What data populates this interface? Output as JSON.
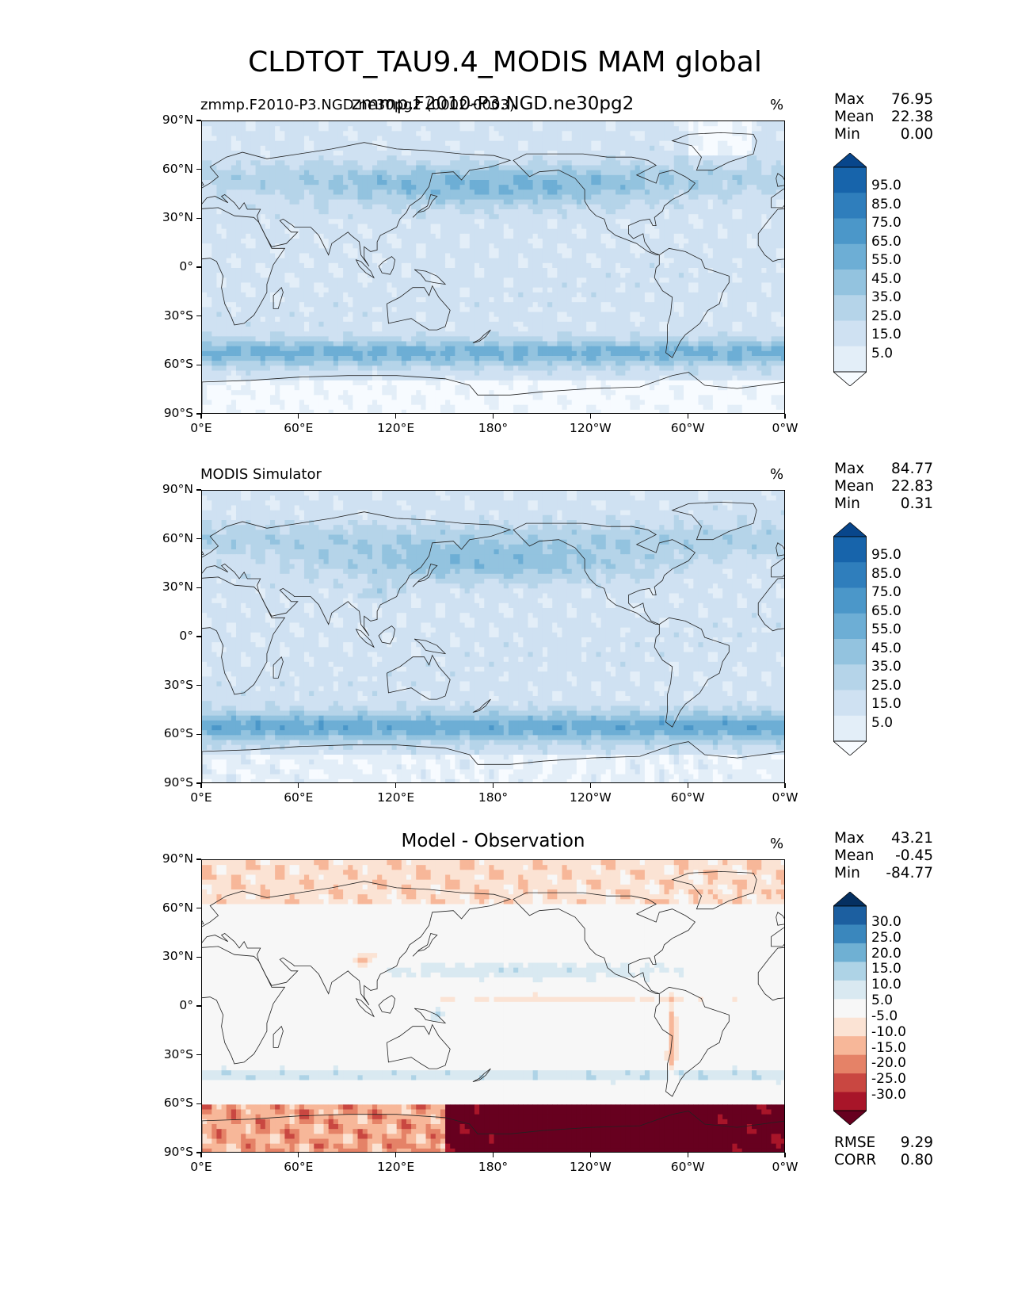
{
  "title": "CLDTOT_TAU9.4_MODIS MAM global",
  "units": "%",
  "lat_ticks": [
    "90°N",
    "60°N",
    "30°N",
    "0°",
    "30°S",
    "60°S",
    "90°S"
  ],
  "lon_ticks": [
    "0°E",
    "60°E",
    "120°E",
    "180°",
    "120°W",
    "60°W",
    "0°W"
  ],
  "panels": [
    {
      "subtitle_left": "zmmp.F2010-P3.NGD.ne30pg2 (0002-0003)",
      "subtitle_center": "zmmp.F2010-P3.NGD.ne30pg2",
      "units": "%",
      "stats": {
        "max_label": "Max",
        "max": "76.95",
        "mean_label": "Mean",
        "mean": "22.38",
        "min_label": "Min",
        "min": "0.00"
      },
      "colorbar": {
        "levels": [
          "95.0",
          "85.0",
          "75.0",
          "65.0",
          "55.0",
          "45.0",
          "35.0",
          "25.0",
          "15.0",
          "5.0"
        ]
      }
    },
    {
      "subtitle_left": "MODIS Simulator",
      "subtitle_center": "",
      "units": "%",
      "stats": {
        "max_label": "Max",
        "max": "84.77",
        "mean_label": "Mean",
        "mean": "22.83",
        "min_label": "Min",
        "min": "0.31"
      },
      "colorbar": {
        "levels": [
          "95.0",
          "85.0",
          "75.0",
          "65.0",
          "55.0",
          "45.0",
          "35.0",
          "25.0",
          "15.0",
          "5.0"
        ]
      }
    },
    {
      "subtitle_left": "",
      "subtitle_center": "Model - Observation",
      "units": "%",
      "stats": {
        "max_label": "Max",
        "max": "43.21",
        "mean_label": "Mean",
        "mean": "-0.45",
        "min_label": "Min",
        "min": "-84.77",
        "rmse_label": "RMSE",
        "rmse": "9.29",
        "corr_label": "CORR",
        "corr": "0.80"
      },
      "colorbar": {
        "levels": [
          "30.0",
          "25.0",
          "20.0",
          "15.0",
          "10.0",
          "5.0",
          "-5.0",
          "-10.0",
          "-15.0",
          "-20.0",
          "-25.0",
          "-30.0"
        ]
      }
    }
  ],
  "chart_data": [
    {
      "type": "heatmap",
      "title": "zmmp.F2010-P3.NGD.ne30pg2",
      "subtitle": "zmmp.F2010-P3.NGD.ne30pg2 (0002-0003)",
      "units": "%",
      "xlim": [
        0,
        360
      ],
      "ylim": [
        -90,
        90
      ],
      "x_ticks": [
        "0°E",
        "60°E",
        "120°E",
        "180°",
        "120°W",
        "60°W",
        "0°W"
      ],
      "y_ticks": [
        "90°N",
        "60°N",
        "30°N",
        "0°",
        "30°S",
        "60°S",
        "90°S"
      ],
      "colorbar_levels": [
        5,
        15,
        25,
        35,
        45,
        55,
        65,
        75,
        85,
        95
      ],
      "colormap": [
        "#f7fbff",
        "#deebf7",
        "#c6dbef",
        "#9ecae1",
        "#6baed6",
        "#4292c6",
        "#2171b5",
        "#08519c",
        "#08306b"
      ],
      "max": 76.95,
      "mean": 22.38,
      "min": 0.0
    },
    {
      "type": "heatmap",
      "title": "MODIS Simulator",
      "units": "%",
      "xlim": [
        0,
        360
      ],
      "ylim": [
        -90,
        90
      ],
      "x_ticks": [
        "0°E",
        "60°E",
        "120°E",
        "180°",
        "120°W",
        "60°W",
        "0°W"
      ],
      "y_ticks": [
        "90°N",
        "60°N",
        "30°N",
        "0°",
        "30°S",
        "60°S",
        "90°S"
      ],
      "colorbar_levels": [
        5,
        15,
        25,
        35,
        45,
        55,
        65,
        75,
        85,
        95
      ],
      "colormap": [
        "#f7fbff",
        "#deebf7",
        "#c6dbef",
        "#9ecae1",
        "#6baed6",
        "#4292c6",
        "#2171b5",
        "#08519c",
        "#08306b"
      ],
      "max": 84.77,
      "mean": 22.83,
      "min": 0.31
    },
    {
      "type": "heatmap",
      "title": "Model - Observation",
      "units": "%",
      "xlim": [
        0,
        360
      ],
      "ylim": [
        -90,
        90
      ],
      "x_ticks": [
        "0°E",
        "60°E",
        "120°E",
        "180°",
        "120°W",
        "60°W",
        "0°W"
      ],
      "y_ticks": [
        "90°N",
        "60°N",
        "30°N",
        "0°",
        "30°S",
        "60°S",
        "90°S"
      ],
      "colorbar_levels": [
        -30,
        -25,
        -20,
        -15,
        -10,
        -5,
        5,
        10,
        15,
        20,
        25,
        30
      ],
      "colormap": [
        "#67001f",
        "#b2182b",
        "#d6604d",
        "#f4a582",
        "#fddbc7",
        "#f7f7f7",
        "#d1e5f0",
        "#92c5de",
        "#4393c3",
        "#2166ac",
        "#053061"
      ],
      "max": 43.21,
      "mean": -0.45,
      "min": -84.77,
      "rmse": 9.29,
      "corr": 0.8
    }
  ]
}
